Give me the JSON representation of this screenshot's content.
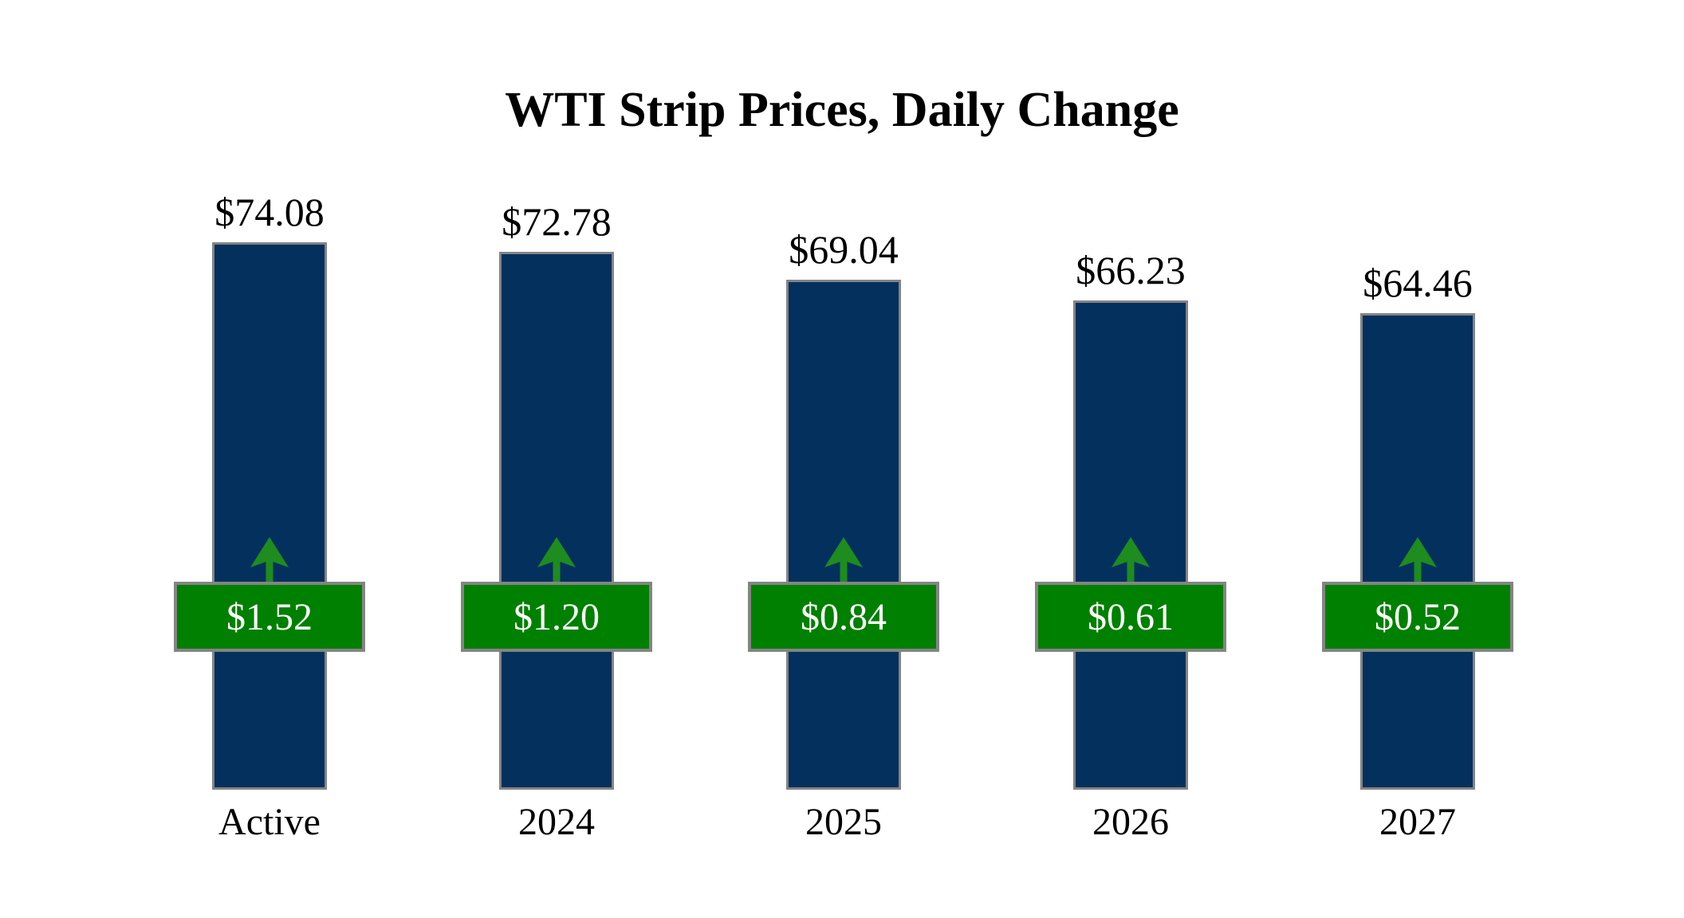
{
  "title": "WTI Strip Prices, Daily Change",
  "chart_data": {
    "type": "bar",
    "title": "WTI Strip Prices, Daily Change",
    "categories": [
      "Active",
      "2024",
      "2025",
      "2026",
      "2027"
    ],
    "series": [
      {
        "name": "Strip Price",
        "values": [
          74.08,
          72.78,
          69.04,
          66.23,
          64.46
        ],
        "labels": [
          "$74.08",
          "$72.78",
          "$69.04",
          "$66.23",
          "$64.46"
        ]
      },
      {
        "name": "Daily Change",
        "values": [
          1.52,
          1.2,
          0.84,
          0.61,
          0.52
        ],
        "labels": [
          "$1.52",
          "$1.20",
          "$0.84",
          "$0.61",
          "$0.52"
        ],
        "direction": "up"
      }
    ],
    "grid": false,
    "axes_visible": false,
    "legend_position": "none",
    "value_labels_position": "above-bars",
    "change_badges_position": "overlaid-on-bars"
  },
  "colors": {
    "background": "#ffffff",
    "bar_fill": "#04305e",
    "bar_border": "#848484",
    "badge_fill": "#008000",
    "badge_border": "#848484",
    "badge_text": "#ffffff",
    "arrow": "#1e8c1e",
    "label_text": "#000000"
  },
  "icons": {
    "up_arrow": "arrow-up-icon"
  }
}
